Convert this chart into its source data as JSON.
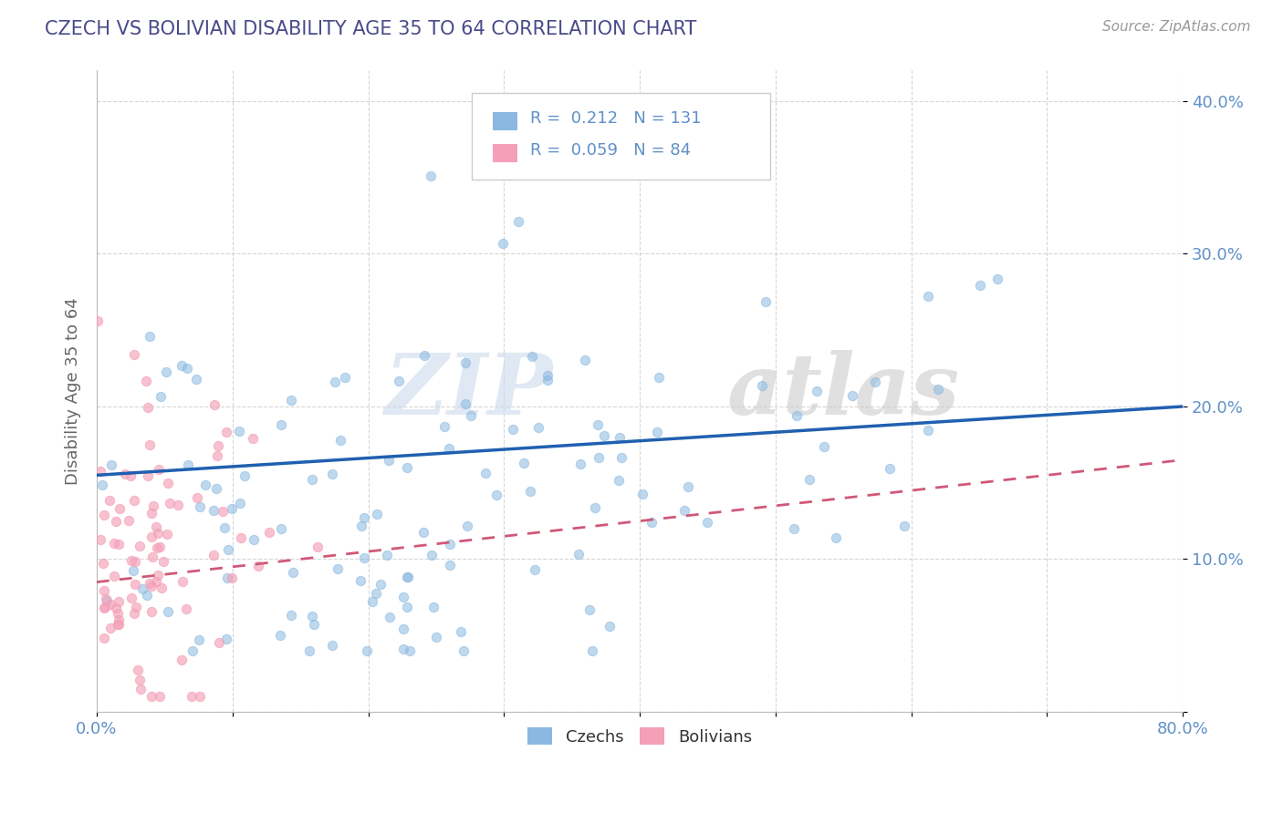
{
  "title": "CZECH VS BOLIVIAN DISABILITY AGE 35 TO 64 CORRELATION CHART",
  "source": "Source: ZipAtlas.com",
  "ylabel": "Disability Age 35 to 64",
  "xlim": [
    0.0,
    0.8
  ],
  "ylim": [
    0.0,
    0.42
  ],
  "xticks": [
    0.0,
    0.1,
    0.2,
    0.3,
    0.4,
    0.5,
    0.6,
    0.7,
    0.8
  ],
  "xticklabels": [
    "0.0%",
    "",
    "",
    "",
    "",
    "",
    "",
    "",
    "80.0%"
  ],
  "yticks": [
    0.0,
    0.1,
    0.2,
    0.3,
    0.4
  ],
  "yticklabels": [
    "",
    "10.0%",
    "20.0%",
    "30.0%",
    "40.0%"
  ],
  "czech_color": "#8ab8e0",
  "bolivian_color": "#f4a0b8",
  "czech_line_color": "#2060b0",
  "bolivian_line_color": "#d05878",
  "bolivian_line_dash": "#d07090",
  "legend_czech_r": "0.212",
  "legend_czech_n": "131",
  "legend_bolivian_r": "0.059",
  "legend_bolivian_n": "84",
  "watermark_zip": "ZIP",
  "watermark_atlas": "atlas",
  "background_color": "#ffffff",
  "grid_color": "#cccccc",
  "title_color": "#4a4a8a",
  "axis_label_color": "#666666",
  "tick_label_color": "#6090c8"
}
